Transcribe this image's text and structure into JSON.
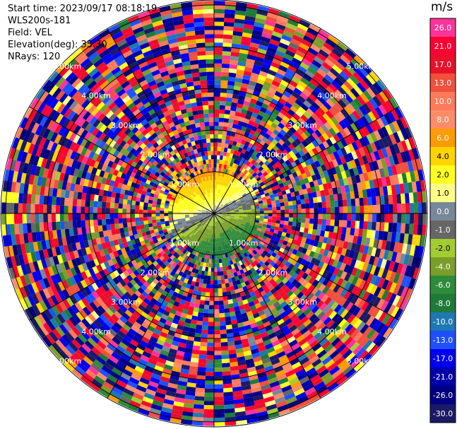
{
  "header": {
    "start_time": "Start time: 2023/09/17 08:18:19",
    "instrument": "WLS200s-181",
    "field": "Field: VEL",
    "elevation": "Elevation(deg): 35.30",
    "nrays": "NRays: 120"
  },
  "colorbar": {
    "unit": "m/s",
    "ticks": [
      "26.0",
      "21.0",
      "17.0",
      "13.0",
      "10.0",
      "8.0",
      "6.0",
      "4.0",
      "2.0",
      "1.0",
      "0.0",
      "-1.0",
      "-2.0",
      "-4.0",
      "-6.0",
      "-8.0",
      "-10.0",
      "-13.0",
      "-17.0",
      "-21.0",
      "-26.0",
      "-30.0"
    ],
    "colors": [
      "#ff3399",
      "#ff0033",
      "#e8102a",
      "#f0503c",
      "#ff7a5a",
      "#ff8c69",
      "#ff9a00",
      "#ffd400",
      "#ffff22",
      "#ffff88",
      "#778899",
      "#666666",
      "#a2cd32",
      "#7a9e2a",
      "#2e8b3a",
      "#1f7a3a",
      "#1e78b4",
      "#1e50ff",
      "#0000ee",
      "#0000aa",
      "#000080",
      "#1a1a66"
    ]
  },
  "chart_data": {
    "type": "heatmap",
    "projection": "polar (PPI scan)",
    "field": "VEL",
    "units": "m/s",
    "n_rays": 120,
    "elevation_deg": 35.3,
    "range_ring_labels": [
      "1.00km",
      "2.00km",
      "3.00km",
      "4.00km",
      "5.00km"
    ],
    "color_scale": {
      "boundaries": [
        -30,
        -26,
        -21,
        -17,
        -13,
        -10,
        -8,
        -6,
        -4,
        -2,
        -1,
        0,
        1,
        2,
        4,
        6,
        8,
        10,
        13,
        17,
        21,
        26
      ],
      "colors": [
        "#1a1a66",
        "#000080",
        "#0000aa",
        "#0000ee",
        "#1e50ff",
        "#1e78b4",
        "#1f7a3a",
        "#2e8b3a",
        "#7a9e2a",
        "#a2cd32",
        "#666666",
        "#778899",
        "#ffff88",
        "#ffff22",
        "#ffd400",
        "#ff9a00",
        "#ff8c69",
        "#ff7a5a",
        "#f0503c",
        "#e8102a",
        "#ff0033",
        "#ff3399"
      ]
    },
    "coherent_region": {
      "northwest_sector_velocity_ms": [
        4,
        10
      ],
      "southeast_sector_velocity_ms": [
        -8,
        -2
      ],
      "zero_line_azimuth_deg": [
        70,
        250
      ],
      "max_coherent_range_km": 1.0
    },
    "noise_beyond_range_km": 1.0
  }
}
